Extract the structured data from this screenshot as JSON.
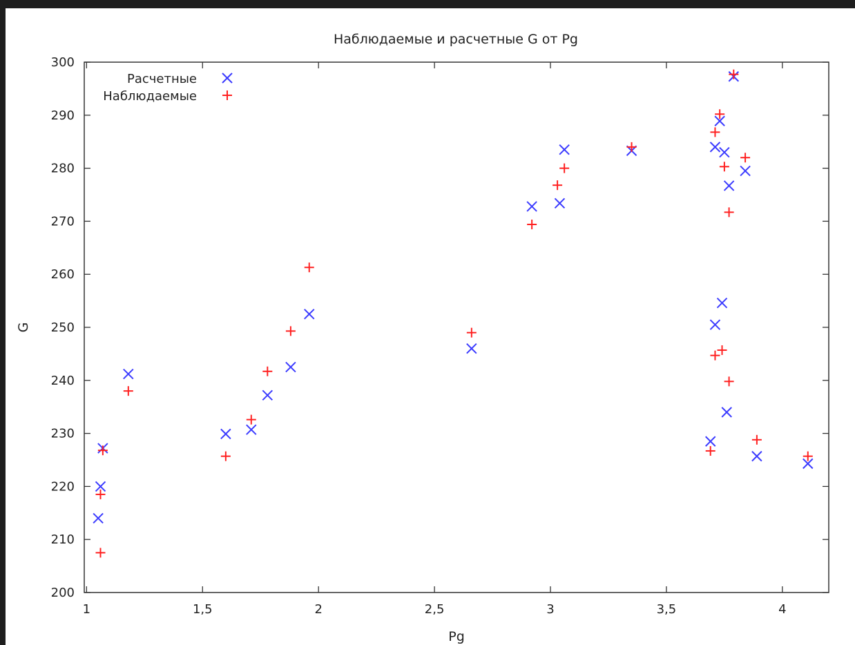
{
  "chart_data": {
    "type": "scatter",
    "title": "Наблюдаемые и расчетные G от Pg",
    "xlabel": "Pg",
    "ylabel": "G",
    "xlim": [
      0.99,
      4.2
    ],
    "ylim": [
      200,
      300
    ],
    "x_ticks": [
      1,
      1.5,
      2,
      2.5,
      3,
      3.5,
      4
    ],
    "x_tick_labels": [
      "1",
      "1,5",
      "2",
      "2,5",
      "3",
      "3,5",
      "4"
    ],
    "y_ticks": [
      200,
      210,
      220,
      230,
      240,
      250,
      260,
      270,
      280,
      290,
      300
    ],
    "y_tick_labels": [
      "200",
      "210",
      "220",
      "230",
      "240",
      "250",
      "260",
      "270",
      "280",
      "290",
      "300"
    ],
    "grid": false,
    "legend_position": "top-left",
    "series": [
      {
        "name": "Расчетные",
        "marker": "x",
        "color": "#3b3bff",
        "points": [
          [
            1.05,
            214.0
          ],
          [
            1.06,
            220.0
          ],
          [
            1.07,
            227.2
          ],
          [
            1.18,
            241.2
          ],
          [
            1.6,
            229.9
          ],
          [
            1.71,
            230.7
          ],
          [
            1.78,
            237.2
          ],
          [
            1.88,
            242.5
          ],
          [
            1.96,
            252.5
          ],
          [
            2.66,
            246.0
          ],
          [
            2.92,
            272.8
          ],
          [
            3.04,
            273.4
          ],
          [
            3.06,
            283.5
          ],
          [
            3.35,
            283.3
          ],
          [
            3.69,
            228.5
          ],
          [
            3.71,
            250.5
          ],
          [
            3.71,
            284.0
          ],
          [
            3.73,
            288.9
          ],
          [
            3.74,
            254.6
          ],
          [
            3.75,
            283.0
          ],
          [
            3.76,
            234.0
          ],
          [
            3.77,
            276.7
          ],
          [
            3.79,
            297.3
          ],
          [
            3.84,
            279.5
          ],
          [
            3.89,
            225.7
          ],
          [
            4.11,
            224.3
          ]
        ]
      },
      {
        "name": "Наблюдаемые",
        "marker": "+",
        "color": "#ff2020",
        "points": [
          [
            1.06,
            207.5
          ],
          [
            1.06,
            218.5
          ],
          [
            1.07,
            226.8
          ],
          [
            1.18,
            238.0
          ],
          [
            1.6,
            225.7
          ],
          [
            1.71,
            232.6
          ],
          [
            1.78,
            241.7
          ],
          [
            1.88,
            249.3
          ],
          [
            1.96,
            261.3
          ],
          [
            2.66,
            249.0
          ],
          [
            2.92,
            269.4
          ],
          [
            3.03,
            276.8
          ],
          [
            3.06,
            280.0
          ],
          [
            3.35,
            284.0
          ],
          [
            3.69,
            226.7
          ],
          [
            3.71,
            244.7
          ],
          [
            3.71,
            286.8
          ],
          [
            3.73,
            290.2
          ],
          [
            3.74,
            245.7
          ],
          [
            3.75,
            280.3
          ],
          [
            3.77,
            239.8
          ],
          [
            3.77,
            271.7
          ],
          [
            3.79,
            297.7
          ],
          [
            3.84,
            282.0
          ],
          [
            3.89,
            228.8
          ],
          [
            4.11,
            225.7
          ]
        ]
      }
    ]
  }
}
